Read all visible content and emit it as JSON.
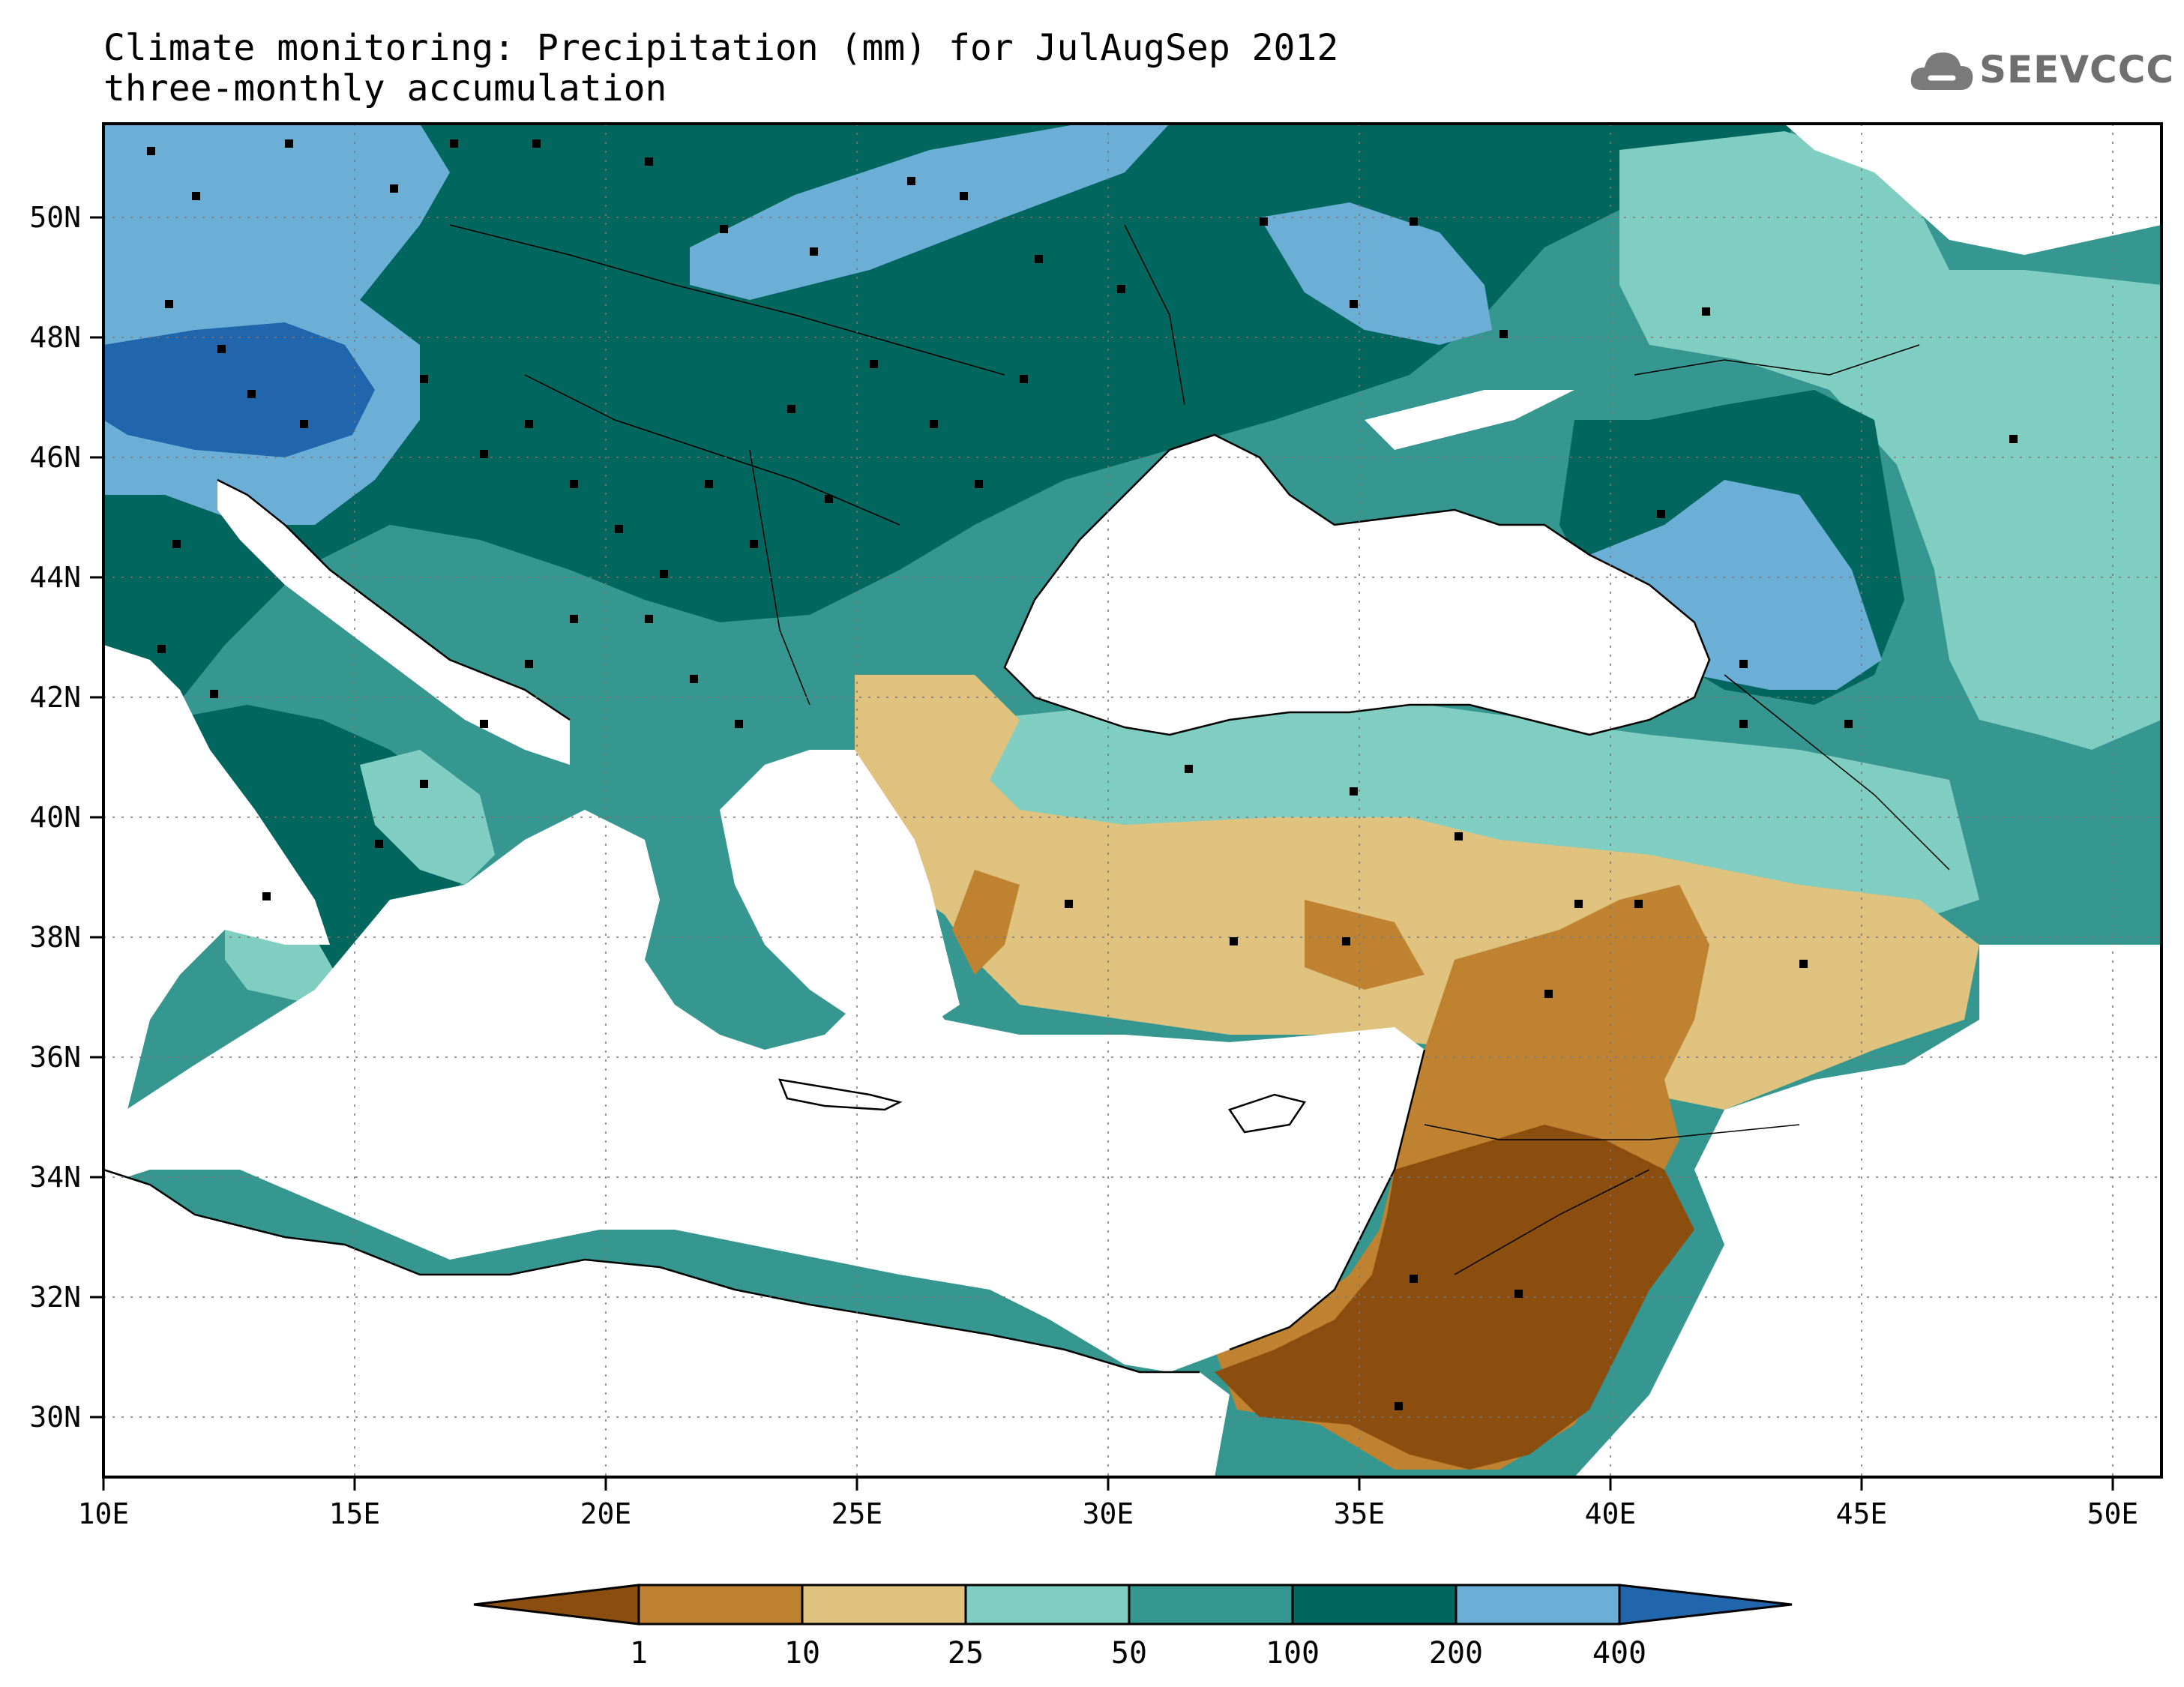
{
  "title": {
    "line1": "Climate monitoring: Precipitation (mm) for JulAugSep 2012",
    "line2": "three-monthly accumulation"
  },
  "logo": {
    "text": "SEEVCCC",
    "icon": "cloud-icon"
  },
  "map": {
    "lon_range": [
      10,
      51
    ],
    "lat_range": [
      29,
      51.5
    ],
    "x_ticks": [
      "10E",
      "15E",
      "20E",
      "25E",
      "30E",
      "35E",
      "40E",
      "45E",
      "50E"
    ],
    "y_ticks": [
      "30N",
      "32N",
      "34N",
      "36N",
      "38N",
      "40N",
      "42N",
      "44N",
      "46N",
      "48N",
      "50N"
    ],
    "grid": "dotted"
  },
  "colorbar": {
    "levels": [
      "1",
      "10",
      "25",
      "50",
      "100",
      "200",
      "400"
    ],
    "colors": [
      "#8B4E0E",
      "#BF8230",
      "#DFC27D",
      "#80CDC1",
      "#35978F",
      "#01665E",
      "#6BAED6",
      "#2166AC"
    ],
    "unit": "mm"
  }
}
